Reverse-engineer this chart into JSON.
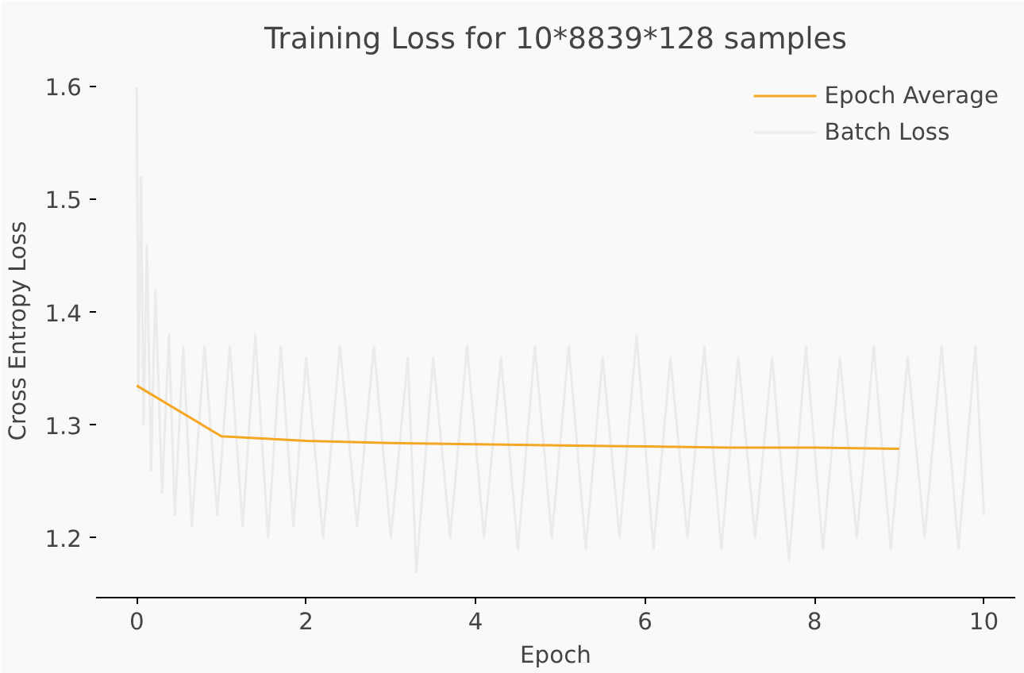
{
  "chart_data": {
    "type": "line",
    "title": "Training Loss for 10*8839*128 samples",
    "xlabel": "Epoch",
    "ylabel": "Cross Entropy Loss",
    "xlim": [
      -0.48,
      10.37
    ],
    "ylim": [
      1.147,
      1.62
    ],
    "xticks": [
      0,
      2,
      4,
      6,
      8,
      10
    ],
    "yticks": [
      1.2,
      1.3,
      1.4,
      1.5,
      1.6
    ],
    "legend": "top right",
    "grid": false,
    "series": [
      {
        "name": "Epoch Average",
        "color": "#f5a623",
        "x": [
          0,
          1,
          2,
          3,
          4,
          5,
          6,
          7,
          8,
          9
        ],
        "values": [
          1.335,
          1.29,
          1.286,
          1.284,
          1.283,
          1.282,
          1.281,
          1.28,
          1.28,
          1.279
        ]
      },
      {
        "name": "Batch Loss",
        "color": "#ebebeb",
        "x": [
          0,
          0.02,
          0.05,
          0.08,
          0.12,
          0.17,
          0.22,
          0.3,
          0.38,
          0.45,
          0.55,
          0.65,
          0.8,
          0.95,
          1.1,
          1.25,
          1.4,
          1.55,
          1.7,
          1.85,
          2.0,
          2.2,
          2.4,
          2.6,
          2.8,
          3.0,
          3.2,
          3.3,
          3.5,
          3.7,
          3.9,
          4.1,
          4.3,
          4.5,
          4.7,
          4.9,
          5.1,
          5.3,
          5.5,
          5.7,
          5.9,
          6.1,
          6.3,
          6.5,
          6.7,
          6.9,
          7.1,
          7.3,
          7.5,
          7.7,
          7.9,
          8.1,
          8.3,
          8.5,
          8.7,
          8.9,
          9.1,
          9.3,
          9.5,
          9.7,
          9.9,
          10.0
        ],
        "values": [
          1.6,
          1.33,
          1.52,
          1.3,
          1.46,
          1.26,
          1.42,
          1.24,
          1.38,
          1.22,
          1.37,
          1.21,
          1.37,
          1.22,
          1.37,
          1.21,
          1.38,
          1.2,
          1.37,
          1.21,
          1.36,
          1.2,
          1.37,
          1.21,
          1.37,
          1.2,
          1.36,
          1.17,
          1.36,
          1.2,
          1.37,
          1.2,
          1.36,
          1.19,
          1.37,
          1.2,
          1.37,
          1.19,
          1.36,
          1.2,
          1.38,
          1.19,
          1.36,
          1.2,
          1.37,
          1.19,
          1.36,
          1.2,
          1.36,
          1.18,
          1.37,
          1.19,
          1.36,
          1.2,
          1.37,
          1.19,
          1.36,
          1.2,
          1.37,
          1.19,
          1.37,
          1.22
        ]
      }
    ]
  }
}
